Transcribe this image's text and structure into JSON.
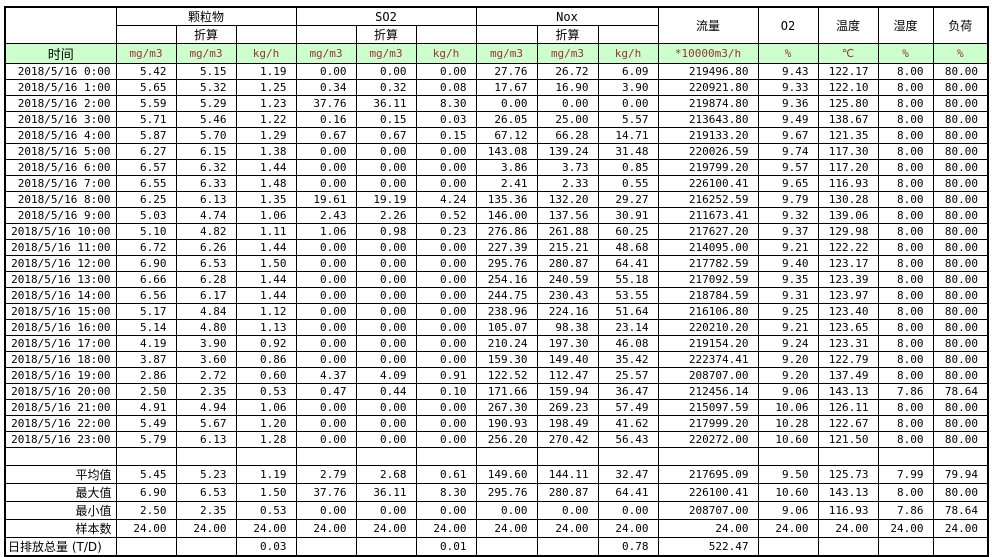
{
  "header": {
    "time_label": "时间",
    "groups": [
      {
        "name": "颗粒物",
        "sub": "折算",
        "units": [
          "mg/m3",
          "mg/m3",
          "kg/h"
        ]
      },
      {
        "name": "SO2",
        "sub": "折算",
        "units": [
          "mg/m3",
          "mg/m3",
          "kg/h"
        ]
      },
      {
        "name": "Nox",
        "sub": "折算",
        "units": [
          "mg/m3",
          "mg/m3",
          "kg/h"
        ]
      }
    ],
    "singles": [
      {
        "name": "流量",
        "unit": "*10000m3/h"
      },
      {
        "name": "O2",
        "unit": "%"
      },
      {
        "name": "温度",
        "unit": "℃"
      },
      {
        "name": "湿度",
        "unit": "%"
      },
      {
        "name": "负荷",
        "unit": "%"
      }
    ]
  },
  "rows": [
    {
      "time": "2018/5/16 0:00",
      "values": [
        "5.42",
        "5.15",
        "1.19",
        "0.00",
        "0.00",
        "0.00",
        "27.76",
        "26.72",
        "6.09",
        "219496.80",
        "9.43",
        "122.17",
        "8.00",
        "80.00"
      ]
    },
    {
      "time": "2018/5/16 1:00",
      "values": [
        "5.65",
        "5.32",
        "1.25",
        "0.34",
        "0.32",
        "0.08",
        "17.67",
        "16.90",
        "3.90",
        "220921.80",
        "9.33",
        "122.10",
        "8.00",
        "80.00"
      ]
    },
    {
      "time": "2018/5/16 2:00",
      "values": [
        "5.59",
        "5.29",
        "1.23",
        "37.76",
        "36.11",
        "8.30",
        "0.00",
        "0.00",
        "0.00",
        "219874.80",
        "9.36",
        "125.80",
        "8.00",
        "80.00"
      ]
    },
    {
      "time": "2018/5/16 3:00",
      "values": [
        "5.71",
        "5.46",
        "1.22",
        "0.16",
        "0.15",
        "0.03",
        "26.05",
        "25.00",
        "5.57",
        "213643.80",
        "9.49",
        "138.67",
        "8.00",
        "80.00"
      ]
    },
    {
      "time": "2018/5/16 4:00",
      "values": [
        "5.87",
        "5.70",
        "1.29",
        "0.67",
        "0.67",
        "0.15",
        "67.12",
        "66.28",
        "14.71",
        "219133.20",
        "9.67",
        "121.35",
        "8.00",
        "80.00"
      ]
    },
    {
      "time": "2018/5/16 5:00",
      "values": [
        "6.27",
        "6.15",
        "1.38",
        "0.00",
        "0.00",
        "0.00",
        "143.08",
        "139.24",
        "31.48",
        "220026.59",
        "9.74",
        "117.30",
        "8.00",
        "80.00"
      ]
    },
    {
      "time": "2018/5/16 6:00",
      "values": [
        "6.57",
        "6.32",
        "1.44",
        "0.00",
        "0.00",
        "0.00",
        "3.86",
        "3.73",
        "0.85",
        "219799.20",
        "9.57",
        "117.20",
        "8.00",
        "80.00"
      ]
    },
    {
      "time": "2018/5/16 7:00",
      "values": [
        "6.55",
        "6.33",
        "1.48",
        "0.00",
        "0.00",
        "0.00",
        "2.41",
        "2.33",
        "0.55",
        "226100.41",
        "9.65",
        "116.93",
        "8.00",
        "80.00"
      ]
    },
    {
      "time": "2018/5/16 8:00",
      "values": [
        "6.25",
        "6.13",
        "1.35",
        "19.61",
        "19.19",
        "4.24",
        "135.36",
        "132.20",
        "29.27",
        "216252.59",
        "9.79",
        "130.28",
        "8.00",
        "80.00"
      ]
    },
    {
      "time": "2018/5/16 9:00",
      "values": [
        "5.03",
        "4.74",
        "1.06",
        "2.43",
        "2.26",
        "0.52",
        "146.00",
        "137.56",
        "30.91",
        "211673.41",
        "9.32",
        "139.06",
        "8.00",
        "80.00"
      ]
    },
    {
      "time": "2018/5/16 10:00",
      "values": [
        "5.10",
        "4.82",
        "1.11",
        "1.06",
        "0.98",
        "0.23",
        "276.86",
        "261.88",
        "60.25",
        "217627.20",
        "9.37",
        "129.98",
        "8.00",
        "80.00"
      ]
    },
    {
      "time": "2018/5/16 11:00",
      "values": [
        "6.72",
        "6.26",
        "1.44",
        "0.00",
        "0.00",
        "0.00",
        "227.39",
        "215.21",
        "48.68",
        "214095.00",
        "9.21",
        "122.22",
        "8.00",
        "80.00"
      ]
    },
    {
      "time": "2018/5/16 12:00",
      "values": [
        "6.90",
        "6.53",
        "1.50",
        "0.00",
        "0.00",
        "0.00",
        "295.76",
        "280.87",
        "64.41",
        "217782.59",
        "9.40",
        "123.17",
        "8.00",
        "80.00"
      ]
    },
    {
      "time": "2018/5/16 13:00",
      "values": [
        "6.66",
        "6.28",
        "1.44",
        "0.00",
        "0.00",
        "0.00",
        "254.16",
        "240.59",
        "55.18",
        "217092.59",
        "9.35",
        "123.39",
        "8.00",
        "80.00"
      ]
    },
    {
      "time": "2018/5/16 14:00",
      "values": [
        "6.56",
        "6.17",
        "1.44",
        "0.00",
        "0.00",
        "0.00",
        "244.75",
        "230.43",
        "53.55",
        "218784.59",
        "9.31",
        "123.97",
        "8.00",
        "80.00"
      ]
    },
    {
      "time": "2018/5/16 15:00",
      "values": [
        "5.17",
        "4.84",
        "1.12",
        "0.00",
        "0.00",
        "0.00",
        "238.96",
        "224.16",
        "51.64",
        "216106.80",
        "9.25",
        "123.40",
        "8.00",
        "80.00"
      ]
    },
    {
      "time": "2018/5/16 16:00",
      "values": [
        "5.14",
        "4.80",
        "1.13",
        "0.00",
        "0.00",
        "0.00",
        "105.07",
        "98.38",
        "23.14",
        "220210.20",
        "9.21",
        "123.65",
        "8.00",
        "80.00"
      ]
    },
    {
      "time": "2018/5/16 17:00",
      "values": [
        "4.19",
        "3.90",
        "0.92",
        "0.00",
        "0.00",
        "0.00",
        "210.24",
        "197.30",
        "46.08",
        "219154.20",
        "9.24",
        "123.31",
        "8.00",
        "80.00"
      ]
    },
    {
      "time": "2018/5/16 18:00",
      "values": [
        "3.87",
        "3.60",
        "0.86",
        "0.00",
        "0.00",
        "0.00",
        "159.30",
        "149.40",
        "35.42",
        "222374.41",
        "9.20",
        "122.79",
        "8.00",
        "80.00"
      ]
    },
    {
      "time": "2018/5/16 19:00",
      "values": [
        "2.86",
        "2.72",
        "0.60",
        "4.37",
        "4.09",
        "0.91",
        "122.52",
        "112.47",
        "25.57",
        "208707.00",
        "9.20",
        "137.49",
        "8.00",
        "80.00"
      ]
    },
    {
      "time": "2018/5/16 20:00",
      "values": [
        "2.50",
        "2.35",
        "0.53",
        "0.47",
        "0.44",
        "0.10",
        "171.66",
        "159.94",
        "36.47",
        "212456.14",
        "9.06",
        "143.13",
        "7.86",
        "78.64"
      ]
    },
    {
      "time": "2018/5/16 21:00",
      "values": [
        "4.91",
        "4.94",
        "1.06",
        "0.00",
        "0.00",
        "0.00",
        "267.30",
        "269.23",
        "57.49",
        "215097.59",
        "10.06",
        "126.11",
        "8.00",
        "80.00"
      ]
    },
    {
      "time": "2018/5/16 22:00",
      "values": [
        "5.49",
        "5.67",
        "1.20",
        "0.00",
        "0.00",
        "0.00",
        "190.93",
        "198.49",
        "41.62",
        "217999.20",
        "10.28",
        "122.67",
        "8.00",
        "80.00"
      ]
    },
    {
      "time": "2018/5/16 23:00",
      "values": [
        "5.79",
        "6.13",
        "1.28",
        "0.00",
        "0.00",
        "0.00",
        "256.20",
        "270.42",
        "56.43",
        "220272.00",
        "10.60",
        "121.50",
        "8.00",
        "80.00"
      ]
    }
  ],
  "summary": [
    {
      "label": "平均值",
      "values": [
        "5.45",
        "5.23",
        "1.19",
        "2.79",
        "2.68",
        "0.61",
        "149.60",
        "144.11",
        "32.47",
        "217695.09",
        "9.50",
        "125.73",
        "7.99",
        "79.94"
      ]
    },
    {
      "label": "最大值",
      "values": [
        "6.90",
        "6.53",
        "1.50",
        "37.76",
        "36.11",
        "8.30",
        "295.76",
        "280.87",
        "64.41",
        "226100.41",
        "10.60",
        "143.13",
        "8.00",
        "80.00"
      ]
    },
    {
      "label": "最小值",
      "values": [
        "2.50",
        "2.35",
        "0.53",
        "0.00",
        "0.00",
        "0.00",
        "0.00",
        "0.00",
        "0.00",
        "208707.00",
        "9.06",
        "116.93",
        "7.86",
        "78.64"
      ]
    },
    {
      "label": "样本数",
      "values": [
        "24.00",
        "24.00",
        "24.00",
        "24.00",
        "24.00",
        "24.00",
        "24.00",
        "24.00",
        "24.00",
        "24.00",
        "24.00",
        "24.00",
        "24.00",
        "24.00"
      ]
    }
  ],
  "total_row": {
    "label": "日排放总量 (T/D)",
    "values": [
      "",
      "",
      "0.03",
      "",
      "",
      "0.01",
      "",
      "",
      "0.78",
      "522.47",
      "",
      "",
      "",
      ""
    ]
  },
  "colors": {
    "unit_row_bg": "#ccffcc",
    "unit_row_text": "#993333",
    "grid_border": "#000000"
  }
}
